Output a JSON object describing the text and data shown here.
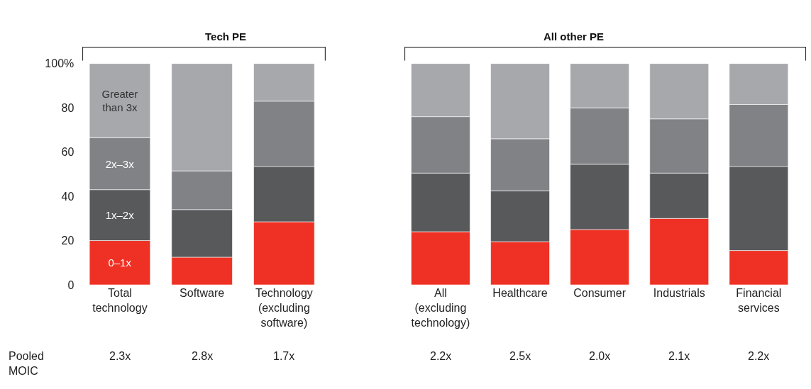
{
  "chart_data": [
    {
      "type": "bar",
      "title": "Tech PE",
      "stacked": true,
      "categories": [
        "Total technology",
        "Software",
        "Technology (excluding software)"
      ],
      "series": [
        {
          "name": "0–1x",
          "color": "#ee3124",
          "values": [
            20,
            12.5,
            28.5
          ]
        },
        {
          "name": "1x–2x",
          "color": "#58595b",
          "values": [
            23,
            21.5,
            25
          ]
        },
        {
          "name": "2x–3x",
          "color": "#818286",
          "values": [
            23.5,
            17.5,
            29.5
          ]
        },
        {
          "name": "Greater than 3x",
          "color": "#a7a8ac",
          "values": [
            33.5,
            48.5,
            17
          ]
        }
      ],
      "ylim": [
        0,
        100
      ],
      "yticks": [
        0,
        20,
        40,
        60,
        80,
        {
          "value": 100,
          "label": "100%"
        }
      ],
      "legend": false,
      "annotations": [
        "Pooled MOIC",
        "2.3x",
        "2.8x",
        "1.7x"
      ]
    },
    {
      "type": "bar",
      "title": "All other PE",
      "stacked": true,
      "categories": [
        "All (excluding technology)",
        "Healthcare",
        "Consumer",
        "Industrials",
        "Financial services"
      ],
      "series": [
        {
          "color": "#ee3124",
          "values": [
            24,
            19.5,
            25,
            30,
            15.5
          ]
        },
        {
          "color": "#58595b",
          "values": [
            26.5,
            23,
            29.5,
            20.5,
            38
          ]
        },
        {
          "color": "#818286",
          "values": [
            25.5,
            23.5,
            25.5,
            24.5,
            28
          ]
        },
        {
          "color": "#a7a8ac",
          "values": [
            24,
            34,
            20,
            25,
            18.5
          ]
        }
      ],
      "ylim": [
        0,
        100
      ],
      "legend": false,
      "tick_labels": "x",
      "annotations": [
        "2.2x",
        "2.5x",
        "2.0x",
        "2.1x",
        "2.2x"
      ]
    }
  ]
}
